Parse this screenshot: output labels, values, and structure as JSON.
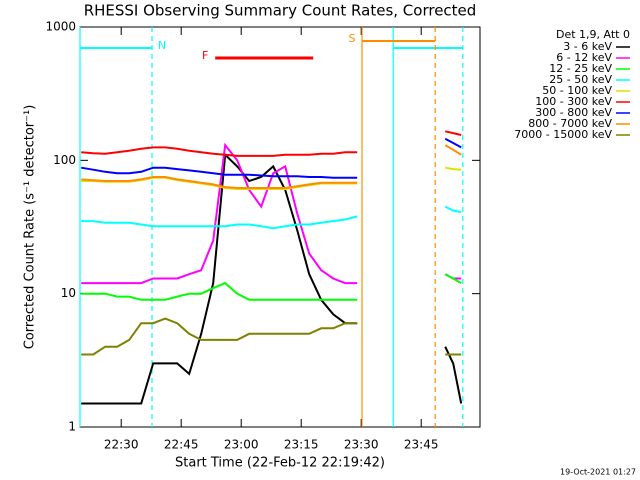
{
  "chart_data": {
    "type": "line",
    "title": "RHESSI Observing Summary Count Rates, Corrected",
    "xlabel": "Start Time (22-Feb-12 22:19:42)",
    "ylabel": "Corrected Count Rate (s⁻¹ detector⁻¹)",
    "legend_title": "Det 1,9, Att 0",
    "footer": "19-Oct-2021 01:27",
    "log_y": true,
    "xlim": [
      1339.7,
      1439.7
    ],
    "xticks": [
      {
        "value": 1350,
        "label": "22:30"
      },
      {
        "value": 1365,
        "label": "22:45"
      },
      {
        "value": 1380,
        "label": "23:00"
      },
      {
        "value": 1395,
        "label": "23:15"
      },
      {
        "value": 1410,
        "label": "23:30"
      },
      {
        "value": 1425,
        "label": "23:45"
      }
    ],
    "ylim": [
      1,
      1000
    ],
    "yticks": [
      1,
      10,
      100,
      1000
    ],
    "x": [
      1340,
      1343,
      1346,
      1349,
      1352,
      1355,
      1358,
      1361,
      1364,
      1367,
      1370,
      1373,
      1376,
      1379,
      1382,
      1385,
      1388,
      1391,
      1394,
      1397,
      1400,
      1403,
      1406,
      1409,
      1410,
      1431,
      1433,
      1435
    ],
    "series": [
      {
        "name": "3 - 6 keV",
        "color": "#000000",
        "values": [
          1.5,
          1.5,
          1.5,
          1.5,
          1.5,
          1.5,
          3,
          3,
          3,
          2.5,
          5,
          12,
          110,
          90,
          70,
          75,
          90,
          60,
          30,
          14,
          9,
          7,
          6,
          6,
          null,
          4,
          3,
          1.5
        ]
      },
      {
        "name": "6 - 12 keV",
        "color": "#ff00ff",
        "values": [
          12,
          12,
          12,
          12,
          12,
          12,
          13,
          13,
          13,
          14,
          15,
          25,
          130,
          100,
          60,
          45,
          80,
          90,
          40,
          20,
          15,
          13,
          12,
          12,
          null,
          14,
          13,
          13
        ]
      },
      {
        "name": "12 - 25 keV",
        "color": "#00ff00",
        "values": [
          10,
          10,
          10,
          9.5,
          9.5,
          9,
          9,
          9,
          9.5,
          10,
          10,
          11,
          12,
          10,
          9,
          9,
          9,
          9,
          9,
          9,
          9,
          9,
          9,
          9,
          null,
          14,
          13,
          12
        ]
      },
      {
        "name": "25 - 50 keV",
        "color": "#00ffff",
        "values": [
          35,
          35,
          34,
          34,
          34,
          33,
          32,
          32,
          32,
          32,
          32,
          32,
          32,
          33,
          33,
          32,
          31,
          32,
          33,
          33,
          34,
          35,
          36,
          38,
          null,
          45,
          42,
          41
        ]
      },
      {
        "name": "50 - 100 keV",
        "color": "#e0e000",
        "values": [
          70,
          70,
          69,
          69,
          69,
          71,
          74,
          74,
          71,
          69,
          67,
          65,
          62,
          61,
          61,
          61,
          61,
          61,
          63,
          65,
          67,
          67,
          67,
          67,
          null,
          88,
          86,
          85
        ]
      },
      {
        "name": "100 - 300 keV",
        "color": "#ff0000",
        "values": [
          115,
          113,
          112,
          115,
          118,
          122,
          125,
          125,
          122,
          118,
          115,
          112,
          110,
          108,
          108,
          108,
          108,
          110,
          110,
          110,
          112,
          112,
          115,
          115,
          null,
          165,
          160,
          155
        ]
      },
      {
        "name": "300 - 800 keV",
        "color": "#0000ff",
        "values": [
          88,
          85,
          82,
          80,
          80,
          82,
          88,
          88,
          86,
          84,
          82,
          80,
          78,
          78,
          78,
          77,
          76,
          76,
          76,
          75,
          75,
          74,
          74,
          74,
          null,
          145,
          135,
          125
        ]
      },
      {
        "name": "800 - 7000 keV",
        "color": "#ff8c00",
        "values": [
          72,
          71,
          70,
          70,
          70,
          72,
          75,
          75,
          72,
          70,
          68,
          66,
          63,
          62,
          62,
          62,
          62,
          62,
          64,
          66,
          68,
          68,
          68,
          68,
          null,
          130,
          120,
          110
        ]
      },
      {
        "name": "7000 - 15000 keV",
        "color": "#808000",
        "values": [
          3.5,
          3.5,
          4,
          4,
          4.5,
          6,
          6,
          6.5,
          6,
          5,
          4.5,
          4.5,
          4.5,
          4.5,
          5,
          5,
          5,
          5,
          5,
          5,
          5.5,
          5.5,
          6,
          6,
          null,
          3.5,
          3.5,
          3.5
        ]
      }
    ],
    "intervals": [
      {
        "label": "N",
        "color": "#00ffff",
        "start": 1339.7,
        "end": 1357.7
      },
      {
        "label": null,
        "color": "#00ffff",
        "start": 1418,
        "end": 1435.4
      },
      {
        "label": "S",
        "color": "#ff8c00",
        "start": 1410.2,
        "end": 1428.5
      },
      {
        "label": "F",
        "color": "#ff0000",
        "start": 1373.5,
        "end": 1398
      }
    ]
  }
}
